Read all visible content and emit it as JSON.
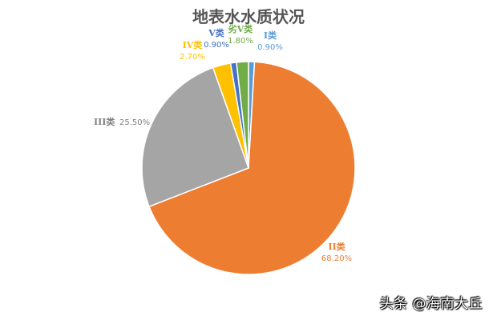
{
  "chart_data": {
    "type": "pie",
    "title": "地表水水质状况",
    "slices": [
      {
        "category": "I类",
        "value_label": "0.90%",
        "value": 0.9,
        "color": "#5b9bd5"
      },
      {
        "category": "II类",
        "value_label": "68.20%",
        "value": 68.2,
        "color": "#ed7d31"
      },
      {
        "category": "III类",
        "value_label": "25.50%",
        "value": 25.5,
        "color": "#a5a5a5"
      },
      {
        "category": "IV类",
        "value_label": "2.70%",
        "value": 2.7,
        "color": "#ffc000"
      },
      {
        "category": "V类",
        "value_label": "0.90%",
        "value": 0.9,
        "color": "#4472c4"
      },
      {
        "category": "劣V类",
        "value_label": "1.80%",
        "value": 1.8,
        "color": "#70ad47"
      }
    ]
  },
  "watermark": "头条 @海南大丘"
}
